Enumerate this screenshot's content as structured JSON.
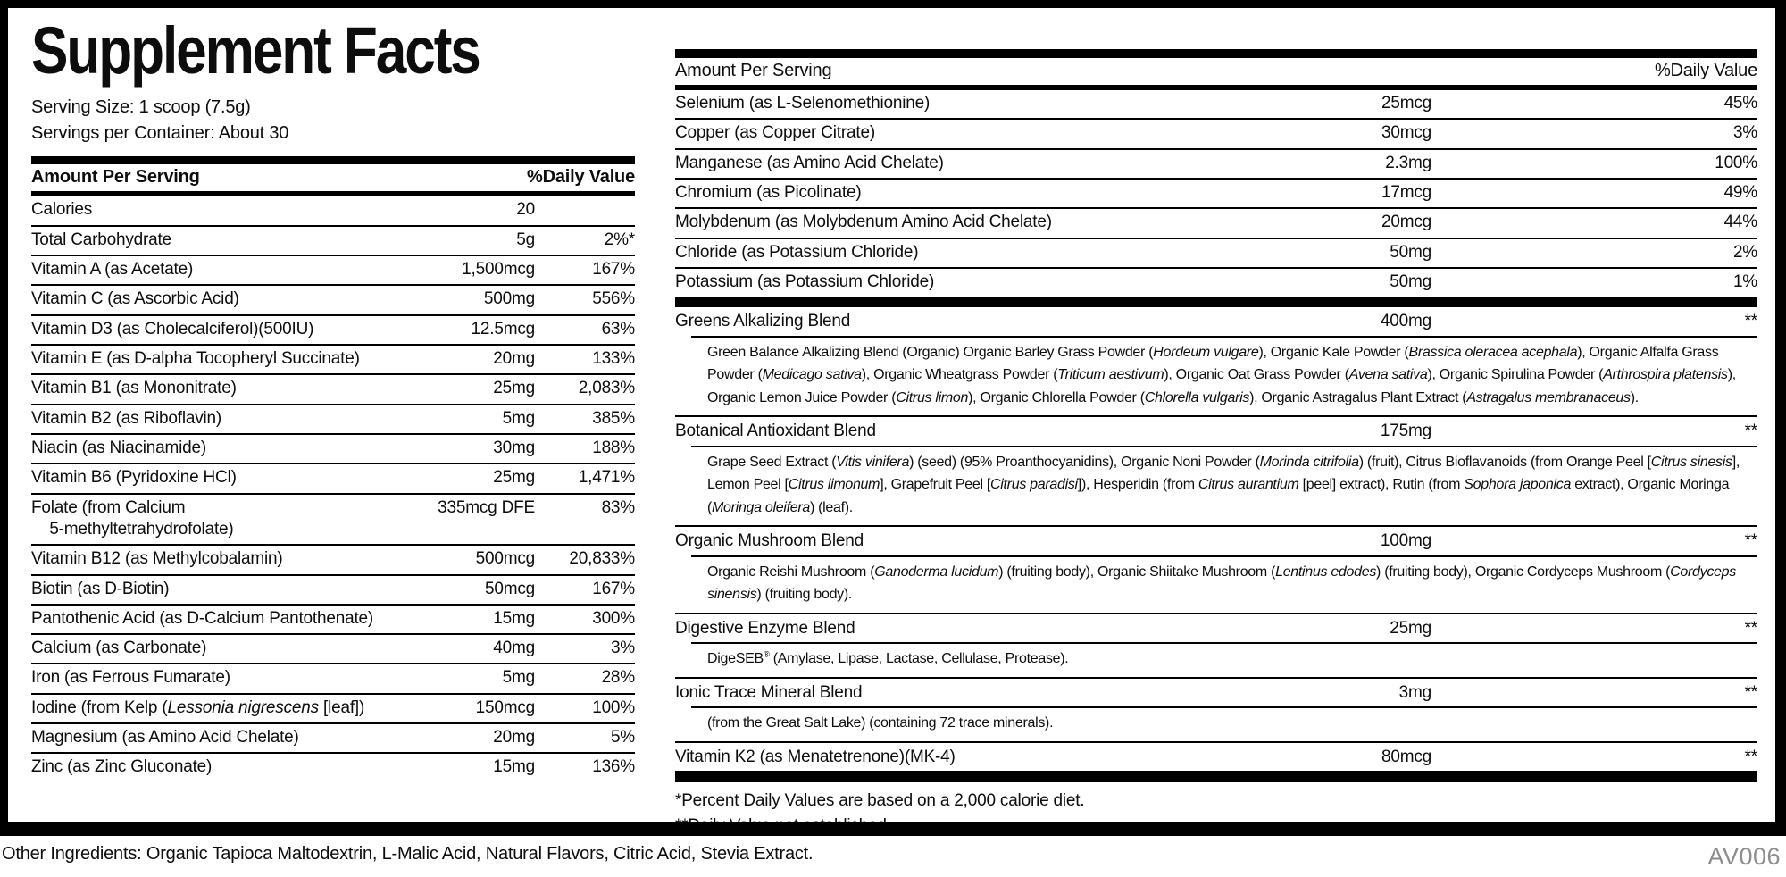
{
  "colors": {
    "ink": "#0d0d0d",
    "border": "#000000",
    "code_gray": "#8d8d8d",
    "background": "#ffffff"
  },
  "label": {
    "title": "Supplement Facts",
    "serving_size": "Serving Size: 1 scoop (7.5g)",
    "servings_per_container": "Servings per Container: About 30",
    "column_headers": {
      "amount": "Amount Per Serving",
      "dv": "%Daily Value"
    },
    "left_rows": [
      {
        "name": "Calories",
        "amount": "20"
      },
      {
        "name": "Total Carbohydrate",
        "amount": "5g",
        "dv": "2%*"
      },
      {
        "name": "Vitamin A (as Acetate)",
        "amount": "1,500mcg",
        "dv": "167%"
      },
      {
        "name": "Vitamin C (as Ascorbic Acid)",
        "amount": "500mg",
        "dv": "556%"
      },
      {
        "name": "Vitamin D3 (as Cholecalciferol)(500IU)",
        "amount": "12.5mcg",
        "dv": "63%"
      },
      {
        "name": "Vitamin E (as D-alpha Tocopheryl Succinate)",
        "amount": "20mg",
        "dv": "133%"
      },
      {
        "name": "Vitamin B1 (as Mononitrate)",
        "amount": "25mg",
        "dv": "2,083%"
      },
      {
        "name": "Vitamin B2 (as Riboflavin)",
        "amount": "5mg",
        "dv": "385%"
      },
      {
        "name": "Niacin (as Niacinamide)",
        "amount": "30mg",
        "dv": "188%"
      },
      {
        "name": "Vitamin B6 (Pyridoxine HCl)",
        "amount": "25mg",
        "dv": "1,471%"
      },
      {
        "name": [
          {
            "t": "Folate (from Calcium"
          },
          {
            "b": 1
          },
          {
            "t": "    5-methyltetrahydrofolate)"
          }
        ],
        "amount": "335mcg DFE",
        "dv": "83%"
      },
      {
        "name": "Vitamin B12 (as Methylcobalamin)",
        "amount": "500mcg",
        "dv": "20,833%"
      },
      {
        "name": "Biotin (as D-Biotin)",
        "amount": "50mcg",
        "dv": "167%"
      },
      {
        "name": "Pantothenic Acid (as D-Calcium Pantothenate)",
        "amount": "15mg",
        "dv": "300%"
      },
      {
        "name": "Calcium (as Carbonate)",
        "amount": "40mg",
        "dv": "3%"
      },
      {
        "name": "Iron (as Ferrous Fumarate)",
        "amount": "5mg",
        "dv": "28%"
      },
      {
        "name": [
          {
            "t": "Iodine (from Kelp ("
          },
          {
            "t": "Lessonia nigrescens",
            "i": 1
          },
          {
            "t": " [leaf])"
          }
        ],
        "amount": "150mcg",
        "dv": "100%"
      },
      {
        "name": "Magnesium (as Amino Acid Chelate)",
        "amount": "20mg",
        "dv": "5%"
      },
      {
        "name": "Zinc (as Zinc Gluconate)",
        "amount": "15mg",
        "dv": "136%"
      }
    ],
    "right_rows": [
      {
        "name": "Selenium (as L-Selenomethionine)",
        "amount": "25mcg",
        "dv": "45%"
      },
      {
        "name": "Copper (as Copper Citrate)",
        "amount": "30mcg",
        "dv": "3%"
      },
      {
        "name": "Manganese (as Amino Acid Chelate)",
        "amount": "2.3mg",
        "dv": "100%"
      },
      {
        "name": "Chromium (as Picolinate)",
        "amount": "17mcg",
        "dv": "49%"
      },
      {
        "name": "Molybdenum (as Molybdenum Amino Acid Chelate)",
        "amount": "20mcg",
        "dv": "44%"
      },
      {
        "name": "Chloride (as Potassium Chloride)",
        "amount": "50mg",
        "dv": "2%"
      },
      {
        "name": "Potassium (as Potassium Chloride)",
        "amount": "50mg",
        "dv": "1%"
      }
    ],
    "blends": [
      {
        "name": "Greens Alkalizing Blend",
        "amount": "400mg",
        "dv": "**",
        "desc": [
          {
            "t": "Green Balance Alkalizing Blend (Organic) Organic Barley Grass Powder ("
          },
          {
            "t": "Hordeum vulgare",
            "i": 1
          },
          {
            "t": "), Organic Kale Powder ("
          },
          {
            "t": "Brassica oleracea acephala",
            "i": 1
          },
          {
            "t": "), Organic Alfalfa Grass Powder ("
          },
          {
            "t": "Medicago sativa",
            "i": 1
          },
          {
            "t": "), Organic Wheatgrass Powder ("
          },
          {
            "t": "Triticum aestivum",
            "i": 1
          },
          {
            "t": "), Organic Oat Grass Powder ("
          },
          {
            "t": "Avena sativa",
            "i": 1
          },
          {
            "t": "), Organic Spirulina Powder ("
          },
          {
            "t": "Arthrospira platensis",
            "i": 1
          },
          {
            "t": "), Organic Lemon Juice Powder ("
          },
          {
            "t": "Citrus limon",
            "i": 1
          },
          {
            "t": "), Organic Chlorella Powder ("
          },
          {
            "t": "Chlorella vulgaris",
            "i": 1
          },
          {
            "t": "), Organic Astragalus Plant Extract ("
          },
          {
            "t": "Astragalus membranaceus",
            "i": 1
          },
          {
            "t": ")."
          }
        ]
      },
      {
        "name": "Botanical Antioxidant Blend",
        "amount": "175mg",
        "dv": "**",
        "desc": [
          {
            "t": "Grape Seed Extract ("
          },
          {
            "t": "Vitis vinifera",
            "i": 1
          },
          {
            "t": ") (seed) (95% Proanthocyanidins), Organic Noni Powder ("
          },
          {
            "t": "Morinda citrifolia",
            "i": 1
          },
          {
            "t": ") (fruit), Citrus Bioflavanoids (from Orange Peel ["
          },
          {
            "t": "Citrus sinesis",
            "i": 1
          },
          {
            "t": "], Lemon Peel ["
          },
          {
            "t": "Citrus limonum",
            "i": 1
          },
          {
            "t": "], Grapefruit Peel ["
          },
          {
            "t": "Citrus paradisi",
            "i": 1
          },
          {
            "t": "]), Hesperidin (from "
          },
          {
            "t": "Citrus aurantium",
            "i": 1
          },
          {
            "t": " [peel] extract), Rutin (from "
          },
          {
            "t": "Sophora japonica",
            "i": 1
          },
          {
            "t": " extract), Organic Moringa ("
          },
          {
            "t": "Moringa oleifera",
            "i": 1
          },
          {
            "t": ") (leaf)."
          }
        ]
      },
      {
        "name": "Organic Mushroom Blend",
        "amount": "100mg",
        "dv": "**",
        "desc": [
          {
            "t": "Organic Reishi Mushroom ("
          },
          {
            "t": "Ganoderma lucidum",
            "i": 1
          },
          {
            "t": ") (fruiting body), Organic Shiitake Mushroom ("
          },
          {
            "t": "Lentinus edodes",
            "i": 1
          },
          {
            "t": ") (fruiting body), Organic Cordyceps Mushroom ("
          },
          {
            "t": "Cordyceps sinensis",
            "i": 1
          },
          {
            "t": ") (fruiting body)."
          }
        ]
      },
      {
        "name": "Digestive Enzyme Blend",
        "amount": "25mg",
        "dv": "**",
        "desc": [
          {
            "t": "DigeSEB"
          },
          {
            "t": "®",
            "s": 1
          },
          {
            "t": " (Amylase, Lipase, Lactase, Cellulase, Protease)."
          }
        ]
      },
      {
        "name": "Ionic Trace Mineral Blend",
        "amount": "3mg",
        "dv": "**",
        "desc": [
          {
            "t": "(from the Great Salt Lake) (containing 72 trace minerals)."
          }
        ]
      },
      {
        "name": "Vitamin K2 (as Menatetrenone)(MK-4)",
        "amount": "80mcg",
        "dv": "**"
      }
    ],
    "footnotes": [
      "*Percent Daily Values are based on a 2,000 calorie diet.",
      "**Daily Value not established."
    ],
    "other_ingredients": "Other Ingredients: Organic Tapioca Maltodextrin, L-Malic Acid, Natural Flavors, Citric Acid, Stevia Extract.",
    "code": "AV006"
  }
}
